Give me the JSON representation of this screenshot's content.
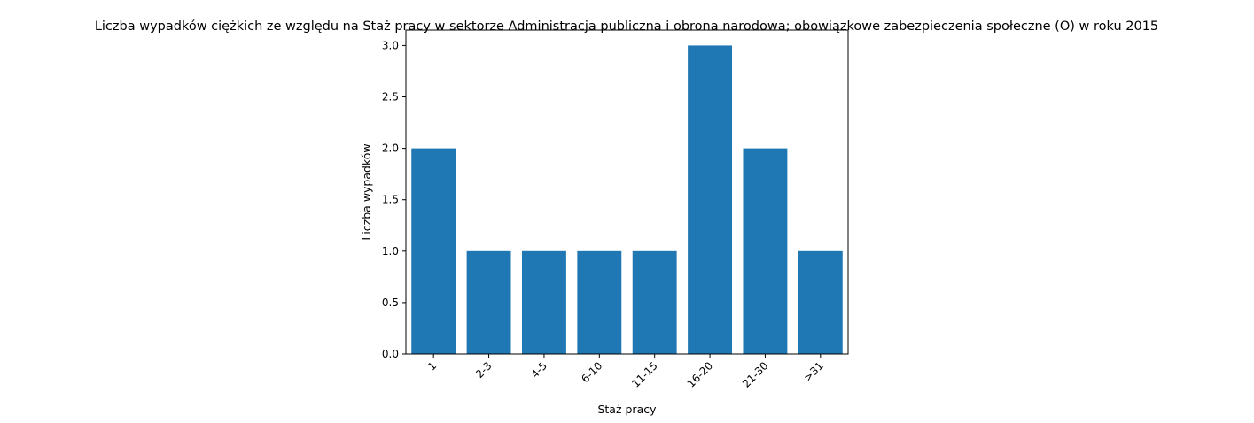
{
  "chart_data": {
    "type": "bar",
    "title": "Liczba wypadków ciężkich ze względu na Staż pracy w sektorze Administracja publiczna i obrona narodowa; obowiązkowe zabezpieczenia społeczne  (O)  w roku 2015",
    "xlabel": "Staż pracy",
    "ylabel": "Liczba wypadków",
    "categories": [
      "1",
      "2-3",
      "4-5",
      "6-10",
      "11-15",
      "16-20",
      "21-30",
      ">31"
    ],
    "values": [
      2,
      1,
      1,
      1,
      1,
      3,
      2,
      1
    ],
    "ylim": [
      0,
      3.15
    ],
    "yticks": [
      0.0,
      0.5,
      1.0,
      1.5,
      2.0,
      2.5,
      3.0
    ],
    "bar_color": "#1f77b4",
    "grid": false,
    "legend": "none"
  }
}
